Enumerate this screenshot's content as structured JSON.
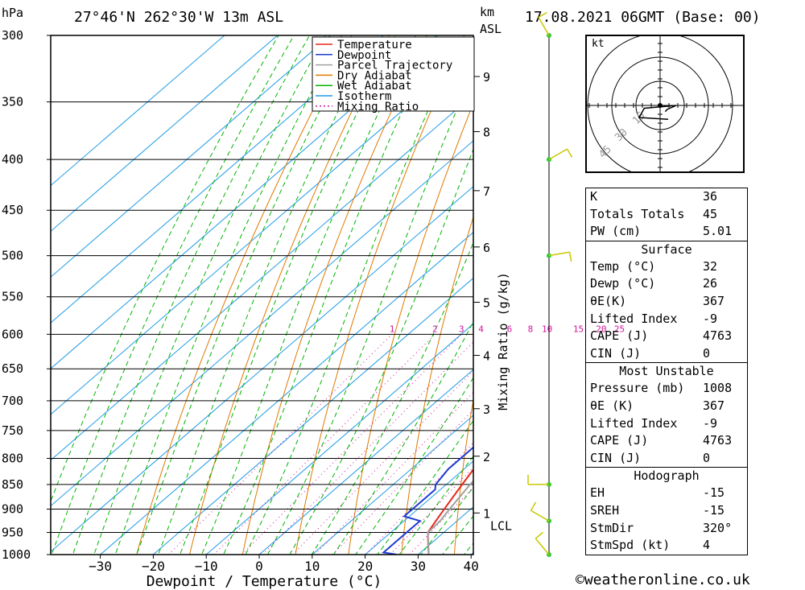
{
  "header": {
    "pressure_unit": "hPa",
    "location": "27°46'N 262°30'W 13m ASL",
    "datetime": "17.08.2021 06GMT (Base: 00)",
    "km_label": "km",
    "asl_label": "ASL"
  },
  "footer": {
    "copyright": "©weatheronline.co.uk"
  },
  "colors": {
    "temperature": "#e8281e",
    "dewpoint": "#1e3cd2",
    "parcel": "#a0a0a0",
    "dry_adiabat": "#e07800",
    "wet_adiabat": "#00b400",
    "isotherm": "#1e9be6",
    "mixing_ratio": "#d2149b",
    "wind_barb": "#c8c800",
    "wind_marker": "#32c832"
  },
  "chart_data": {
    "type": "line",
    "subtype": "skew-T log-P",
    "xlabel": "Dewpoint / Temperature (°C)",
    "xlim": [
      -40,
      40
    ],
    "ylim": [
      1000,
      300
    ],
    "x_ticks": [
      -30,
      -20,
      -10,
      0,
      10,
      20,
      30,
      40
    ],
    "pressure_levels": [
      300,
      350,
      400,
      450,
      500,
      550,
      600,
      650,
      700,
      750,
      800,
      850,
      900,
      950,
      1000
    ],
    "height_axis": {
      "label": "km ASL",
      "ticks": [
        {
          "label": "1",
          "p": 908
        },
        {
          "label": "2",
          "p": 796
        },
        {
          "label": "3",
          "p": 713
        },
        {
          "label": "4",
          "p": 630
        },
        {
          "label": "5",
          "p": 557
        },
        {
          "label": "6",
          "p": 490
        },
        {
          "label": "7",
          "p": 430
        },
        {
          "label": "8",
          "p": 375
        },
        {
          "label": "9",
          "p": 330
        }
      ],
      "lcl_label": "LCL",
      "lcl_p": 950
    },
    "mixing_ratio": {
      "label": "Mixing Ratio (g/kg)",
      "values": [
        1,
        2,
        3,
        4,
        6,
        8,
        10,
        15,
        20,
        25
      ]
    },
    "legend": {
      "position": "top-right",
      "entries": [
        "Temperature",
        "Dewpoint",
        "Parcel Trajectory",
        "Dry Adiabat",
        "Wet Adiabat",
        "Isotherm",
        "Mixing Ratio"
      ]
    },
    "series": [
      {
        "name": "Temperature",
        "points": [
          [
            1000,
            32
          ],
          [
            980,
            30
          ],
          [
            950,
            27
          ],
          [
            925,
            26
          ],
          [
            900,
            25
          ],
          [
            850,
            23
          ],
          [
            800,
            21
          ],
          [
            750,
            18.5
          ],
          [
            700,
            15.5
          ],
          [
            675,
            15
          ],
          [
            650,
            12.5
          ],
          [
            625,
            11.5
          ],
          [
            600,
            9.5
          ],
          [
            575,
            7.5
          ],
          [
            550,
            5
          ],
          [
            525,
            3
          ],
          [
            500,
            1
          ],
          [
            475,
            -1.5
          ],
          [
            450,
            -4
          ],
          [
            425,
            -6.5
          ],
          [
            400,
            -10.5
          ],
          [
            375,
            -14
          ],
          [
            360,
            -16
          ],
          [
            350,
            -17.5
          ]
        ]
      },
      {
        "name": "Dewpoint",
        "points": [
          [
            1000,
            26
          ],
          [
            995,
            23
          ],
          [
            990,
            23
          ],
          [
            950,
            23
          ],
          [
            925,
            23
          ],
          [
            915,
            19
          ],
          [
            900,
            19
          ],
          [
            860,
            19
          ],
          [
            850,
            18
          ],
          [
            820,
            17
          ],
          [
            800,
            17
          ],
          [
            775,
            17
          ],
          [
            750,
            17
          ],
          [
            725,
            15
          ],
          [
            700,
            14
          ],
          [
            690,
            14
          ],
          [
            670,
            12
          ],
          [
            650,
            11
          ],
          [
            625,
            11
          ],
          [
            600,
            10
          ],
          [
            575,
            9
          ],
          [
            560,
            8
          ],
          [
            550,
            7
          ],
          [
            540,
            5
          ],
          [
            530,
            4
          ],
          [
            520,
            2
          ],
          [
            510,
            2
          ],
          [
            500,
            4
          ],
          [
            480,
            1
          ],
          [
            465,
            -1
          ],
          [
            450,
            2
          ],
          [
            440,
            0
          ],
          [
            430,
            -4
          ],
          [
            420,
            -12
          ],
          [
            400,
            -9
          ],
          [
            385,
            -10
          ],
          [
            375,
            -12
          ],
          [
            370,
            -9
          ],
          [
            362,
            -1
          ],
          [
            360,
            -19
          ],
          [
            358,
            -14
          ],
          [
            355,
            -7
          ],
          [
            350,
            -17
          ],
          [
            340,
            -17
          ],
          [
            320,
            -17
          ],
          [
            310,
            -17
          ],
          [
            300,
            -22
          ]
        ]
      },
      {
        "name": "Parcel Trajectory",
        "points": [
          [
            1000,
            32
          ],
          [
            950,
            27
          ],
          [
            925,
            26.8
          ],
          [
            900,
            26
          ],
          [
            850,
            24.5
          ],
          [
            800,
            23.5
          ],
          [
            750,
            22.5
          ],
          [
            700,
            21.5
          ],
          [
            650,
            20.5
          ],
          [
            600,
            19
          ],
          [
            550,
            17
          ],
          [
            500,
            14.5
          ],
          [
            450,
            11.5
          ],
          [
            400,
            7.5
          ],
          [
            375,
            5
          ],
          [
            350,
            2
          ]
        ]
      }
    ],
    "wind_profile": [
      {
        "p": 300,
        "dir": 330,
        "spd_kt": 10
      },
      {
        "p": 400,
        "dir": 60,
        "spd_kt": 15
      },
      {
        "p": 500,
        "dir": 80,
        "spd_kt": 10
      },
      {
        "p": 850,
        "dir": 270,
        "spd_kt": 10
      },
      {
        "p": 925,
        "dir": 300,
        "spd_kt": 5
      },
      {
        "p": 1000,
        "dir": 320,
        "spd_kt": 5
      }
    ],
    "hodograph": {
      "unit_label": "kt",
      "ring_labels": [
        "15",
        "30",
        "45"
      ]
    }
  },
  "indices": {
    "general": [
      {
        "label": "K",
        "value": "36"
      },
      {
        "label": "Totals Totals",
        "value": "45"
      },
      {
        "label": "PW (cm)",
        "value": "5.01"
      }
    ],
    "surface": {
      "title": "Surface",
      "rows": [
        {
          "label": "Temp (°C)",
          "value": "32"
        },
        {
          "label": "Dewp (°C)",
          "value": "26"
        },
        {
          "label": "θE(K)",
          "value": "367"
        },
        {
          "label": "Lifted Index",
          "value": "-9"
        },
        {
          "label": "CAPE (J)",
          "value": "4763"
        },
        {
          "label": "CIN (J)",
          "value": "0"
        }
      ]
    },
    "most_unstable": {
      "title": "Most Unstable",
      "rows": [
        {
          "label": "Pressure (mb)",
          "value": "1008"
        },
        {
          "label": "θE (K)",
          "value": "367"
        },
        {
          "label": "Lifted Index",
          "value": "-9"
        },
        {
          "label": "CAPE (J)",
          "value": "4763"
        },
        {
          "label": "CIN (J)",
          "value": "0"
        }
      ]
    },
    "hodograph": {
      "title": "Hodograph",
      "rows": [
        {
          "label": "EH",
          "value": "-15"
        },
        {
          "label": "SREH",
          "value": "-15"
        },
        {
          "label": "StmDir",
          "value": "320°"
        },
        {
          "label": "StmSpd (kt)",
          "value": "4"
        }
      ]
    }
  }
}
